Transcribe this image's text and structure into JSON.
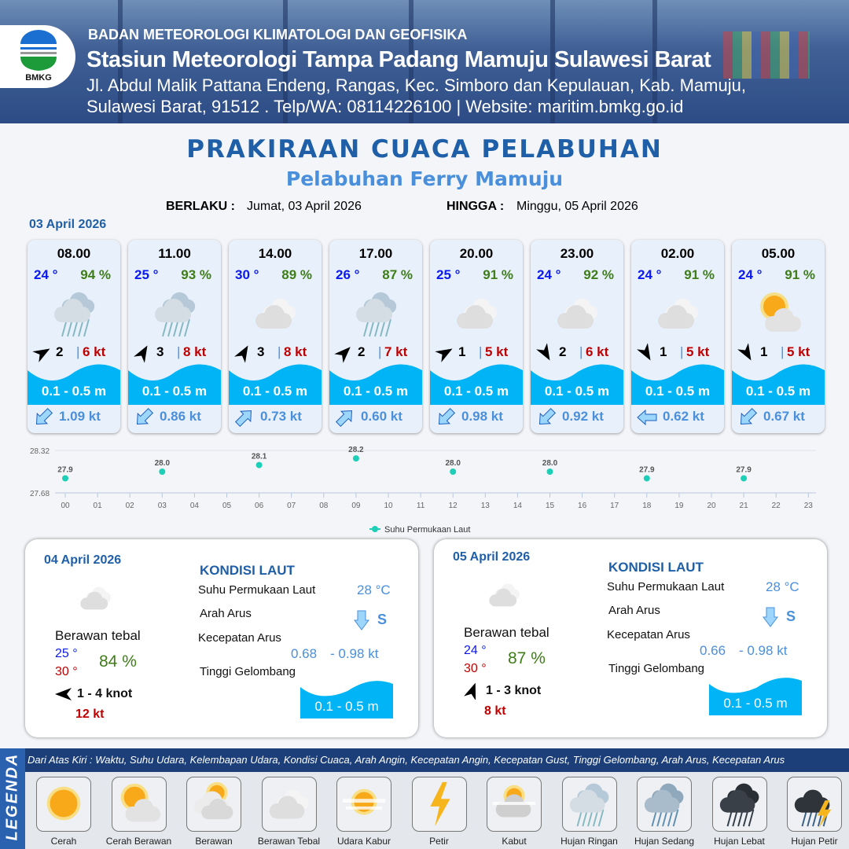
{
  "header": {
    "agency": "BADAN METEOROLOGI KLIMATOLOGI DAN GEOFISIKA",
    "station": "Stasiun Meteorologi Tampa Padang Mamuju Sulawesi Barat",
    "address_line1": "Jl. Abdul Malik Pattana Endeng, Rangas, Kec. Simboro dan Kepulauan, Kab. Mamuju,",
    "address_line2": "Sulawesi Barat, 91512 . Telp/WA: 08114226100 | Website: maritim.bmkg.go.id",
    "logo_text": "BMKG"
  },
  "title": "PRAKIRAAN CUACA PELABUHAN",
  "subtitle": "Pelabuhan Ferry Mamuju",
  "validity": {
    "from_label": "BERLAKU :",
    "from": "Jumat, 03 April 2026",
    "to_label": "HINGGA :",
    "to": "Minggu, 05 April 2026"
  },
  "day1_date": "03 April 2026",
  "colors": {
    "temp": "#0a18f0",
    "humidity": "#3e7d17",
    "gust": "#c00000",
    "wave": "#00b4f5",
    "current": "#4a8fdc",
    "title": "#1f5fa8"
  },
  "cards": [
    {
      "time": "08.00",
      "temp": "24 °",
      "hum": "94 %",
      "icon": "light-rain",
      "wind_dir_deg": 60,
      "wind": "2",
      "gust": "6 kt",
      "wave": "0.1 - 0.5 m",
      "cur_dir": "sw",
      "cur": "1.09 kt"
    },
    {
      "time": "11.00",
      "temp": "25 °",
      "hum": "93 %",
      "icon": "light-rain",
      "wind_dir_deg": 30,
      "wind": "3",
      "gust": "8 kt",
      "wave": "0.1 - 0.5 m",
      "cur_dir": "sw",
      "cur": "0.86 kt"
    },
    {
      "time": "14.00",
      "temp": "30 °",
      "hum": "89 %",
      "icon": "overcast",
      "wind_dir_deg": 30,
      "wind": "3",
      "gust": "8 kt",
      "wave": "0.1 - 0.5 m",
      "cur_dir": "ne",
      "cur": "0.73 kt"
    },
    {
      "time": "17.00",
      "temp": "26 °",
      "hum": "87 %",
      "icon": "light-rain",
      "wind_dir_deg": 45,
      "wind": "2",
      "gust": "7 kt",
      "wave": "0.1 - 0.5 m",
      "cur_dir": "ne",
      "cur": "0.60 kt"
    },
    {
      "time": "20.00",
      "temp": "25 °",
      "hum": "91 %",
      "icon": "overcast",
      "wind_dir_deg": 60,
      "wind": "1",
      "gust": "5 kt",
      "wave": "0.1 - 0.5 m",
      "cur_dir": "sw",
      "cur": "0.98 kt"
    },
    {
      "time": "23.00",
      "temp": "24 °",
      "hum": "92 %",
      "icon": "overcast",
      "wind_dir_deg": 150,
      "wind": "2",
      "gust": "6 kt",
      "wave": "0.1 - 0.5 m",
      "cur_dir": "sw",
      "cur": "0.92 kt"
    },
    {
      "time": "02.00",
      "temp": "24 °",
      "hum": "91 %",
      "icon": "overcast",
      "wind_dir_deg": 150,
      "wind": "1",
      "gust": "5 kt",
      "wave": "0.1 - 0.5 m",
      "cur_dir": "w",
      "cur": "0.62 kt"
    },
    {
      "time": "05.00",
      "temp": "24 °",
      "hum": "91 %",
      "icon": "partly-cloudy",
      "wind_dir_deg": 150,
      "wind": "1",
      "gust": "5 kt",
      "wave": "0.1 - 0.5 m",
      "cur_dir": "sw",
      "cur": "0.67 kt"
    }
  ],
  "chart_data": {
    "type": "scatter",
    "x": [
      "00",
      "03",
      "06",
      "09",
      "12",
      "15",
      "18",
      "21"
    ],
    "values": [
      27.9,
      28.0,
      28.1,
      28.2,
      28.0,
      28.0,
      27.9,
      27.9
    ],
    "data_labels": [
      "27.9",
      "28.0",
      "28.1",
      "28.2",
      "28.0",
      "28.0",
      "27.9",
      "27.9"
    ],
    "x_ticks": [
      "00",
      "01",
      "02",
      "03",
      "04",
      "05",
      "06",
      "07",
      "08",
      "09",
      "10",
      "11",
      "12",
      "13",
      "14",
      "15",
      "16",
      "17",
      "18",
      "19",
      "20",
      "21",
      "22",
      "23"
    ],
    "y_ticks": [
      "28.32",
      "27.68"
    ],
    "ylim": [
      27.68,
      28.32
    ],
    "legend": "Suhu Permukaan Laut",
    "legend_position": "bottom",
    "color": "#1ecfb8"
  },
  "days": [
    {
      "date": "04 April 2026",
      "weather": "Berawan tebal",
      "tmin": "25 °",
      "tmax": "30 °",
      "hum": "84 %",
      "wind_dir_deg": -90,
      "wind": "1 - 4 knot",
      "gust": "12 kt",
      "sea_title": "KONDISI LAUT",
      "sst_label": "Suhu Permukaan Laut",
      "sst": "28 °C",
      "dir_label": "Arah Arus",
      "dir": "S",
      "speed_label": "Kecepatan Arus",
      "speed_min": "0.68",
      "speed_max": "- 0.98 kt",
      "wave_label": "Tinggi Gelombang",
      "wave": "0.1 - 0.5 m"
    },
    {
      "date": "05 April 2026",
      "weather": "Berawan tebal",
      "tmin": "24 °",
      "tmax": "30 °",
      "hum": "87 %",
      "wind_dir_deg": 20,
      "wind": "1 - 3 knot",
      "gust": "8 kt",
      "sea_title": "KONDISI LAUT",
      "sst_label": "Suhu Permukaan Laut",
      "sst": "28 °C",
      "dir_label": "Arah Arus",
      "dir": "S",
      "speed_label": "Kecepatan Arus",
      "speed_min": "0.66",
      "speed_max": "- 0.98 kt",
      "wave_label": "Tinggi Gelombang",
      "wave": "0.1 - 0.5 m"
    }
  ],
  "legend": {
    "title": "LEGENDA",
    "description": "Dari Atas Kiri : Waktu, Suhu Udara, Kelembapan Udara, Kondisi Cuaca, Arah Angin, Kecepatan Angin, Kecepatan Gust, Tinggi Gelombang, Arah Arus, Kecepatan Arus",
    "items": [
      {
        "label": "Cerah",
        "icon": "sunny"
      },
      {
        "label": "Cerah Berawan",
        "icon": "partly-cloudy"
      },
      {
        "label": "Berawan",
        "icon": "cloudy"
      },
      {
        "label": "Berawan Tebal",
        "icon": "overcast"
      },
      {
        "label": "Udara Kabur",
        "icon": "haze"
      },
      {
        "label": "Petir",
        "icon": "lightning"
      },
      {
        "label": "Kabut",
        "icon": "fog"
      },
      {
        "label": "Hujan Ringan",
        "icon": "light-rain"
      },
      {
        "label": "Hujan Sedang",
        "icon": "moderate-rain"
      },
      {
        "label": "Hujan Lebat",
        "icon": "heavy-rain"
      },
      {
        "label": "Hujan Petir",
        "icon": "thunderstorm"
      }
    ]
  }
}
